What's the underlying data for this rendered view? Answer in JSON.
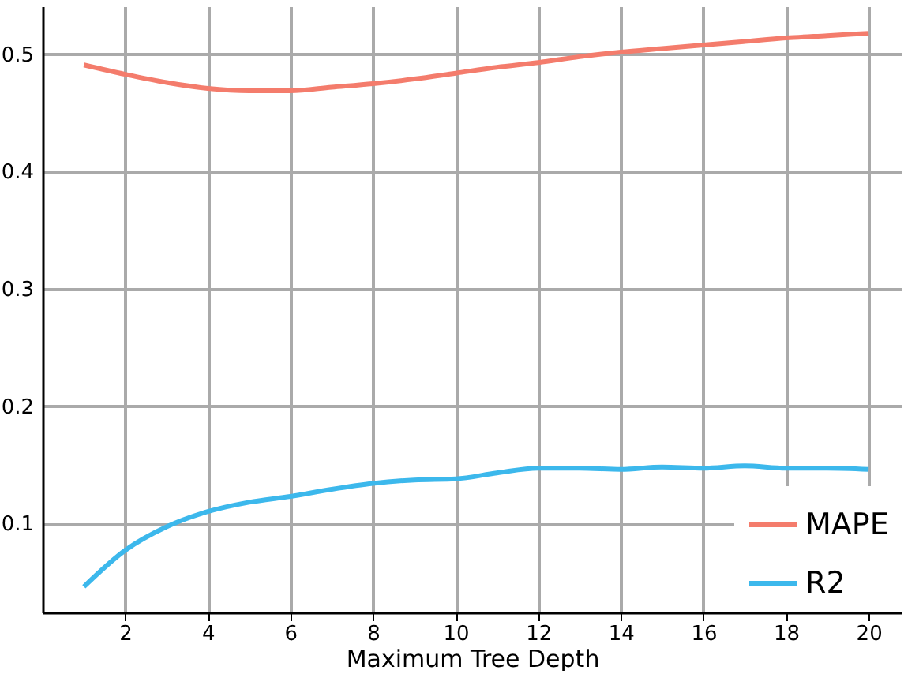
{
  "chart_data": {
    "type": "line",
    "xlabel": "Maximum Tree Depth",
    "x": [
      1,
      2,
      3,
      4,
      5,
      6,
      7,
      8,
      9,
      10,
      11,
      12,
      13,
      14,
      15,
      16,
      17,
      18,
      19,
      20
    ],
    "series": [
      {
        "name": "MAPE",
        "color": "#f47c6c",
        "values": [
          0.491,
          0.483,
          0.476,
          0.471,
          0.469,
          0.469,
          0.472,
          0.475,
          0.479,
          0.484,
          0.489,
          0.493,
          0.498,
          0.502,
          0.505,
          0.508,
          0.511,
          0.514,
          0.516,
          0.518
        ]
      },
      {
        "name": "R2",
        "color": "#3cb8ec",
        "values": [
          0.046,
          0.077,
          0.097,
          0.11,
          0.118,
          0.123,
          0.129,
          0.134,
          0.137,
          0.138,
          0.143,
          0.147,
          0.147,
          0.146,
          0.148,
          0.147,
          0.149,
          0.147,
          0.147,
          0.146
        ]
      }
    ],
    "xlim": [
      0,
      20.8
    ],
    "xticks": [
      2,
      4,
      6,
      8,
      10,
      12,
      14,
      16,
      18,
      20
    ],
    "ylim": [
      0.024,
      0.541
    ],
    "yticks": [
      0.1,
      0.2,
      0.3,
      0.4,
      0.5
    ],
    "grid": true,
    "legend": "bottom right",
    "line_style": "solid"
  }
}
